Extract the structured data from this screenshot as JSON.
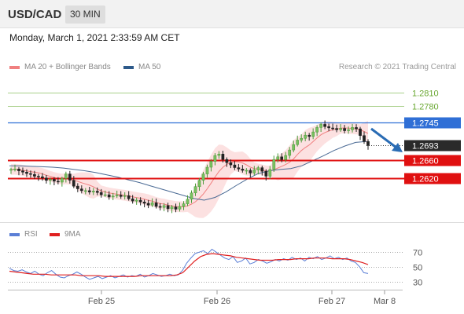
{
  "header": {
    "symbol": "USD/CAD",
    "timeframe": "30 MIN"
  },
  "datetime": "Monday, March 1, 2021 2:33:59 AM CET",
  "legend": {
    "ma20": {
      "label": "MA 20 + Bollinger Bands",
      "color": "#f08080"
    },
    "ma50": {
      "label": "MA 50",
      "color": "#2d5a8a"
    }
  },
  "credit": "Research © 2021 Trading Central",
  "rsi_legend": {
    "rsi": {
      "label": "RSI",
      "color": "#5b7fd6"
    },
    "ma9": {
      "label": "9MA",
      "color": "#e02020"
    }
  },
  "x_axis": {
    "ticks": [
      "Feb 25",
      "Feb 26",
      "Feb 27",
      "Mar 8"
    ]
  },
  "chart_data": {
    "type": "candlestick",
    "price_range": [
      1.2525,
      1.2845
    ],
    "levels": [
      {
        "value": 1.281,
        "label": "1.2810",
        "role": "resistance-2",
        "color": "#6aa832"
      },
      {
        "value": 1.278,
        "label": "1.2780",
        "role": "resistance-1",
        "color": "#6aa832"
      },
      {
        "value": 1.2745,
        "label": "1.2745",
        "role": "pivot",
        "color": "#2f6fd6"
      },
      {
        "value": 1.2693,
        "label": "1.2693",
        "role": "last-price",
        "color": "#222222"
      },
      {
        "value": 1.266,
        "label": "1.2660",
        "role": "support-1",
        "color": "#e01010"
      },
      {
        "value": 1.262,
        "label": "1.2620",
        "role": "support-2",
        "color": "#e01010"
      }
    ],
    "price_series": [
      1.264,
      1.2641,
      1.2637,
      1.2634,
      1.2631,
      1.2629,
      1.2625,
      1.2624,
      1.2621,
      1.2616,
      1.2618,
      1.2614,
      1.2612,
      1.262,
      1.263,
      1.2616,
      1.2603,
      1.2597,
      1.2593,
      1.2593,
      1.259,
      1.2592,
      1.2589,
      1.2584,
      1.2584,
      1.2579,
      1.2581,
      1.2583,
      1.258,
      1.2582,
      1.2575,
      1.257,
      1.2572,
      1.2568,
      1.2565,
      1.2561,
      1.2566,
      1.2558,
      1.2556,
      1.256,
      1.2553,
      1.2557,
      1.2552,
      1.2558,
      1.2564,
      1.2574,
      1.2588,
      1.2602,
      1.2616,
      1.263,
      1.2645,
      1.2658,
      1.2671,
      1.2674,
      1.2662,
      1.2655,
      1.265,
      1.2644,
      1.2641,
      1.2638,
      1.2638,
      1.2632,
      1.2639,
      1.2644,
      1.2636,
      1.2625,
      1.264,
      1.2662,
      1.2668,
      1.2662,
      1.2671,
      1.2683,
      1.2695,
      1.2705,
      1.2709,
      1.2716,
      1.2713,
      1.2723,
      1.2733,
      1.274,
      1.2735,
      1.2732,
      1.2731,
      1.2728,
      1.2731,
      1.2726,
      1.2728,
      1.2733,
      1.273,
      1.2715,
      1.2702,
      1.2693
    ],
    "ma50": [
      1.2648,
      1.2648,
      1.2647,
      1.2646,
      1.2645,
      1.2643,
      1.264,
      1.2637,
      1.2633,
      1.2628,
      1.2623,
      1.2617,
      1.2611,
      1.2604,
      1.2597,
      1.259,
      1.2583,
      1.2576,
      1.2572,
      1.2578,
      1.259,
      1.2605,
      1.2619,
      1.2631,
      1.2637,
      1.264,
      1.2642,
      1.2648,
      1.2659,
      1.267,
      1.2682,
      1.2692,
      1.27,
      1.2702
    ],
    "rsi_axis": {
      "range": [
        20,
        82
      ],
      "ticks": [
        70,
        50,
        30
      ]
    },
    "rsi": [
      48,
      45,
      44,
      46,
      43,
      41,
      44,
      40,
      38,
      42,
      45,
      40,
      36,
      35,
      38,
      40,
      43,
      40,
      36,
      33,
      35,
      37,
      34,
      36,
      38,
      35,
      37,
      39,
      36,
      38,
      37,
      40,
      36,
      38,
      41,
      39,
      37,
      38,
      40,
      38,
      39,
      45,
      55,
      62,
      68,
      70,
      72,
      68,
      74,
      70,
      66,
      62,
      60,
      64,
      56,
      58,
      62,
      54,
      56,
      60,
      58,
      55,
      57,
      60,
      58,
      61,
      59,
      63,
      60,
      62,
      58,
      63,
      61,
      64,
      60,
      62,
      65,
      61,
      63,
      60,
      62,
      58,
      56,
      50,
      42,
      41
    ],
    "rsi_ma9": [
      44,
      43,
      42,
      41,
      40,
      40,
      40,
      39,
      39,
      39,
      39,
      39,
      38,
      38,
      38,
      38,
      37,
      37,
      37,
      37,
      37,
      37,
      38,
      38,
      38,
      38,
      38,
      38,
      39,
      42,
      50,
      58,
      64,
      67,
      68,
      67,
      66,
      65,
      63,
      62,
      61,
      60,
      59,
      59,
      59,
      60,
      60,
      60,
      61,
      61,
      61,
      62,
      62,
      62,
      61,
      61,
      61,
      60,
      58,
      56,
      53
    ]
  }
}
